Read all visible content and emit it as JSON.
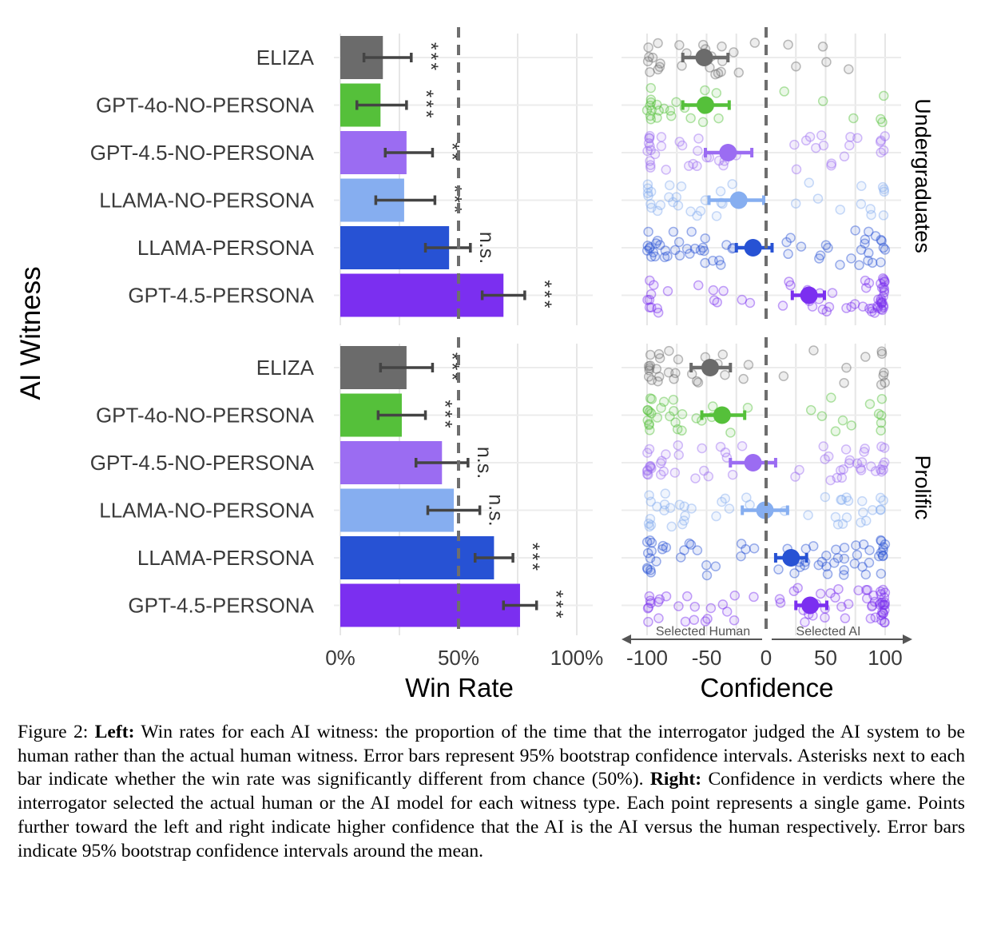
{
  "figure": {
    "y_axis_title": "AI Witness",
    "facets": [
      "Undergraduates",
      "Prolific"
    ],
    "direction_labels": {
      "left": "Selected Human",
      "right": "Selected AI"
    }
  },
  "colors": {
    "ELIZA": "#6b6b6b",
    "GPT-4o-NO-PERSONA": "#55c03a",
    "GPT-4.5-NO-PERSONA": "#9b6cf2",
    "LLAMA-NO-PERSONA": "#86aef0",
    "LLAMA-PERSONA": "#2752d4",
    "GPT-4.5-PERSONA": "#7b2ff0"
  },
  "chart_data": [
    {
      "type": "bar",
      "panel": "Left",
      "xlabel": "Win Rate",
      "ylabel": "AI Witness",
      "xlim": [
        0,
        100
      ],
      "ticks": [
        "0%",
        "50%",
        "100%"
      ],
      "reference_line": 50,
      "categories": [
        "ELIZA",
        "GPT-4o-NO-PERSONA",
        "GPT-4.5-NO-PERSONA",
        "LLAMA-NO-PERSONA",
        "LLAMA-PERSONA",
        "GPT-4.5-PERSONA"
      ],
      "series": [
        {
          "name": "Undergraduates",
          "values": [
            18,
            17,
            28,
            27,
            46,
            69
          ],
          "ci_low": [
            10,
            7,
            19,
            15,
            36,
            60
          ],
          "ci_high": [
            30,
            28,
            39,
            40,
            55,
            78
          ],
          "significance": [
            "***",
            "***",
            "**",
            "***",
            "n.s.",
            "***"
          ]
        },
        {
          "name": "Prolific",
          "values": [
            28,
            26,
            43,
            48,
            65,
            76
          ],
          "ci_low": [
            17,
            16,
            32,
            37,
            57,
            69
          ],
          "ci_high": [
            39,
            36,
            54,
            59,
            73,
            83
          ],
          "significance": [
            "***",
            "***",
            "n.s.",
            "n.s.",
            "***",
            "***"
          ]
        }
      ]
    },
    {
      "type": "scatter",
      "panel": "Right",
      "xlabel": "Confidence",
      "xlim": [
        -100,
        100
      ],
      "ticks": [
        "-100",
        "-50",
        "0",
        "50",
        "100"
      ],
      "reference_line": 0,
      "categories": [
        "ELIZA",
        "GPT-4o-NO-PERSONA",
        "GPT-4.5-NO-PERSONA",
        "LLAMA-NO-PERSONA",
        "LLAMA-PERSONA",
        "GPT-4.5-PERSONA"
      ],
      "series": [
        {
          "name": "Undergraduates",
          "mean": [
            -52,
            -51,
            -32,
            -23,
            -11,
            36
          ],
          "ci_low": [
            -70,
            -70,
            -51,
            -48,
            -25,
            22
          ],
          "ci_high": [
            -32,
            -31,
            -12,
            -2,
            5,
            49
          ],
          "point_density": [
            30,
            28,
            46,
            36,
            58,
            62
          ]
        },
        {
          "name": "Prolific",
          "mean": [
            -47,
            -37,
            -11,
            -1,
            21,
            37
          ],
          "ci_low": [
            -63,
            -54,
            -30,
            -20,
            8,
            25
          ],
          "ci_high": [
            -30,
            -18,
            8,
            18,
            34,
            51
          ],
          "point_density": [
            40,
            38,
            55,
            44,
            66,
            72
          ]
        }
      ]
    }
  ],
  "caption": {
    "p1_label": "Figure 2: ",
    "p1_left": "Left:",
    "p1_text": " Win rates for each AI witness: the proportion of the time that the interrogator judged the AI system to be human rather than the actual human witness. Error bars represent 95% bootstrap confidence intervals.  Asterisks next to each bar indicate whether the win rate was significantly different from chance (50%). ",
    "p1_right": "Right:",
    "p1_text2": " Confidence in verdicts where the interrogator selected the actual human or the AI model for each witness type. Each point represents a single game. Points further toward the left and right indicate higher confidence that the AI is the AI versus the human respectively. Error bars indicate 95% bootstrap confidence intervals around the mean."
  }
}
